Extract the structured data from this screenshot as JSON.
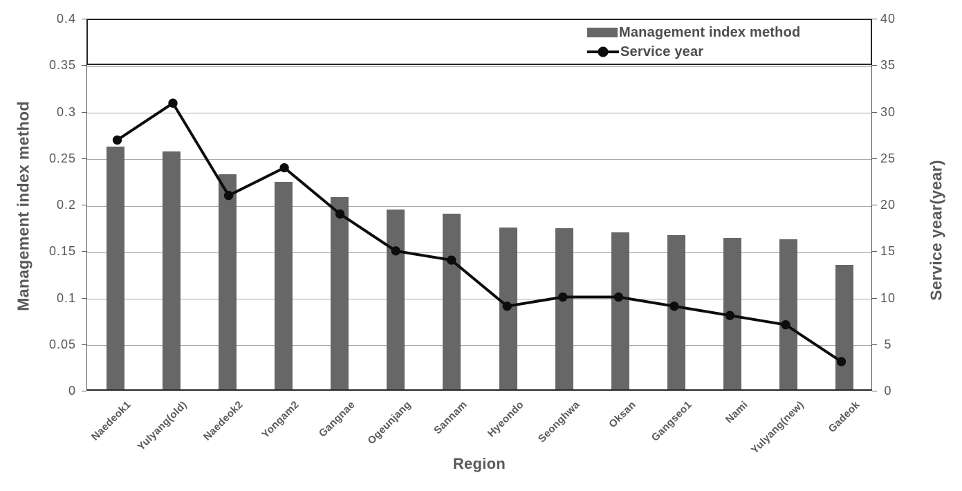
{
  "chart_data": {
    "type": "combo",
    "categories": [
      "Naedeok1",
      "Yulyang(old)",
      "Naedeok2",
      "Yongam2",
      "Gangnae",
      "Ogeunjang",
      "Sannam",
      "Hyeondo",
      "Seonghwa",
      "Oksan",
      "Gangseo1",
      "Nami",
      "Yulyang(new)",
      "Gadeok"
    ],
    "series": [
      {
        "name": "Management index method",
        "type": "bar",
        "axis": "left",
        "color": "#676767",
        "values": [
          0.261,
          0.256,
          0.231,
          0.223,
          0.207,
          0.193,
          0.189,
          0.174,
          0.173,
          0.169,
          0.166,
          0.163,
          0.161,
          0.134
        ]
      },
      {
        "name": "Service year",
        "type": "line",
        "axis": "right",
        "color": "#0d0d0d",
        "values": [
          27,
          31,
          21,
          24,
          19,
          15,
          14,
          9,
          10,
          10,
          9,
          8,
          7,
          3
        ]
      }
    ],
    "left_axis": {
      "label": "Management index method",
      "min": 0,
      "max": 0.4,
      "step": 0.05,
      "ticks": [
        "0.4",
        "0.35",
        "0.3",
        "0.25",
        "0.2",
        "0.15",
        "0.1",
        "0.05",
        "0"
      ]
    },
    "right_axis": {
      "label": "Service year(year)",
      "min": 0,
      "max": 40,
      "step": 5,
      "ticks": [
        "40",
        "35",
        "30",
        "25",
        "20",
        "15",
        "10",
        "5",
        "0"
      ]
    },
    "x_axis": {
      "label": "Region"
    },
    "legend": {
      "position": "top",
      "border": true
    },
    "grid": "horizontal",
    "colors": {
      "bar": "#676767",
      "line": "#0d0d0d",
      "grid": "#a6a6a6",
      "axis_text": "#595959",
      "border": "#262626"
    }
  }
}
